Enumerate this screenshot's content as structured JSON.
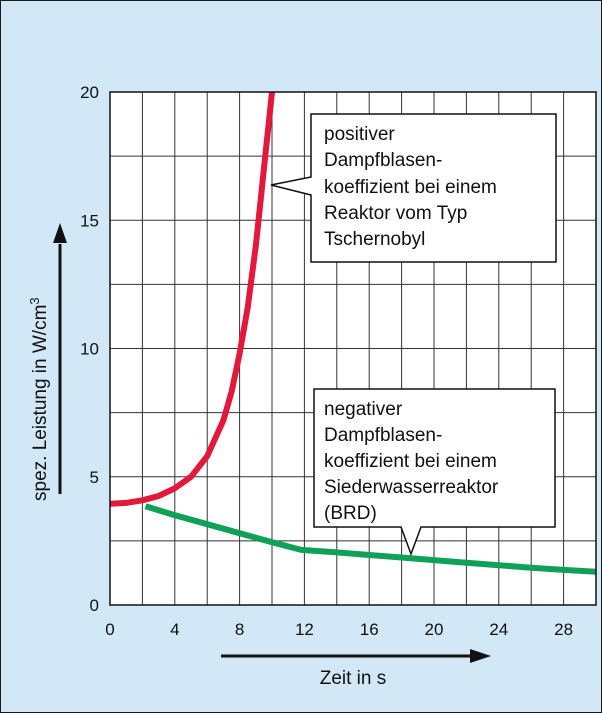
{
  "chart_data": {
    "type": "line",
    "xlabel": "Zeit in s",
    "ylabel": "spez. Leistung in W/cm",
    "ylabel_superscript": "3",
    "xlim": [
      0,
      30
    ],
    "ylim": [
      0,
      20
    ],
    "grid": true,
    "x_ticks": [
      "0",
      "4",
      "8",
      "12",
      "16",
      "20",
      "24",
      "28"
    ],
    "y_ticks": [
      "0",
      "5",
      "10",
      "15",
      "20"
    ],
    "colors": {
      "positive": "#e2183c",
      "negative": "#0fa05a",
      "background": "#d2e8f7"
    },
    "series": [
      {
        "key": "positive",
        "x": [
          0,
          1,
          2,
          3,
          4,
          5,
          6,
          7,
          7.5,
          8,
          8.5,
          9,
          9.3,
          9.6,
          9.8,
          10.0
        ],
        "y": [
          3.95,
          3.98,
          4.08,
          4.25,
          4.55,
          5.0,
          5.8,
          7.2,
          8.3,
          9.8,
          11.6,
          14.0,
          15.8,
          17.6,
          18.8,
          20.0
        ]
      },
      {
        "key": "negative",
        "x": [
          2.2,
          4,
          6,
          8,
          10,
          11.8,
          14,
          16,
          18,
          20,
          22,
          24,
          26,
          28,
          30
        ],
        "y": [
          3.85,
          3.5,
          3.15,
          2.8,
          2.45,
          2.15,
          2.05,
          1.95,
          1.85,
          1.75,
          1.65,
          1.55,
          1.45,
          1.37,
          1.3
        ]
      }
    ],
    "annotations": [
      {
        "lines": [
          "positiver",
          "Dampfblasen-",
          "koeffizient bei einem",
          "Reaktor vom Typ",
          "Tschernobyl"
        ]
      },
      {
        "lines": [
          "negativer",
          "Dampfblasen-",
          "koeffizient bei einem",
          "Siederwasserreaktor",
          "(BRD)"
        ]
      }
    ]
  }
}
